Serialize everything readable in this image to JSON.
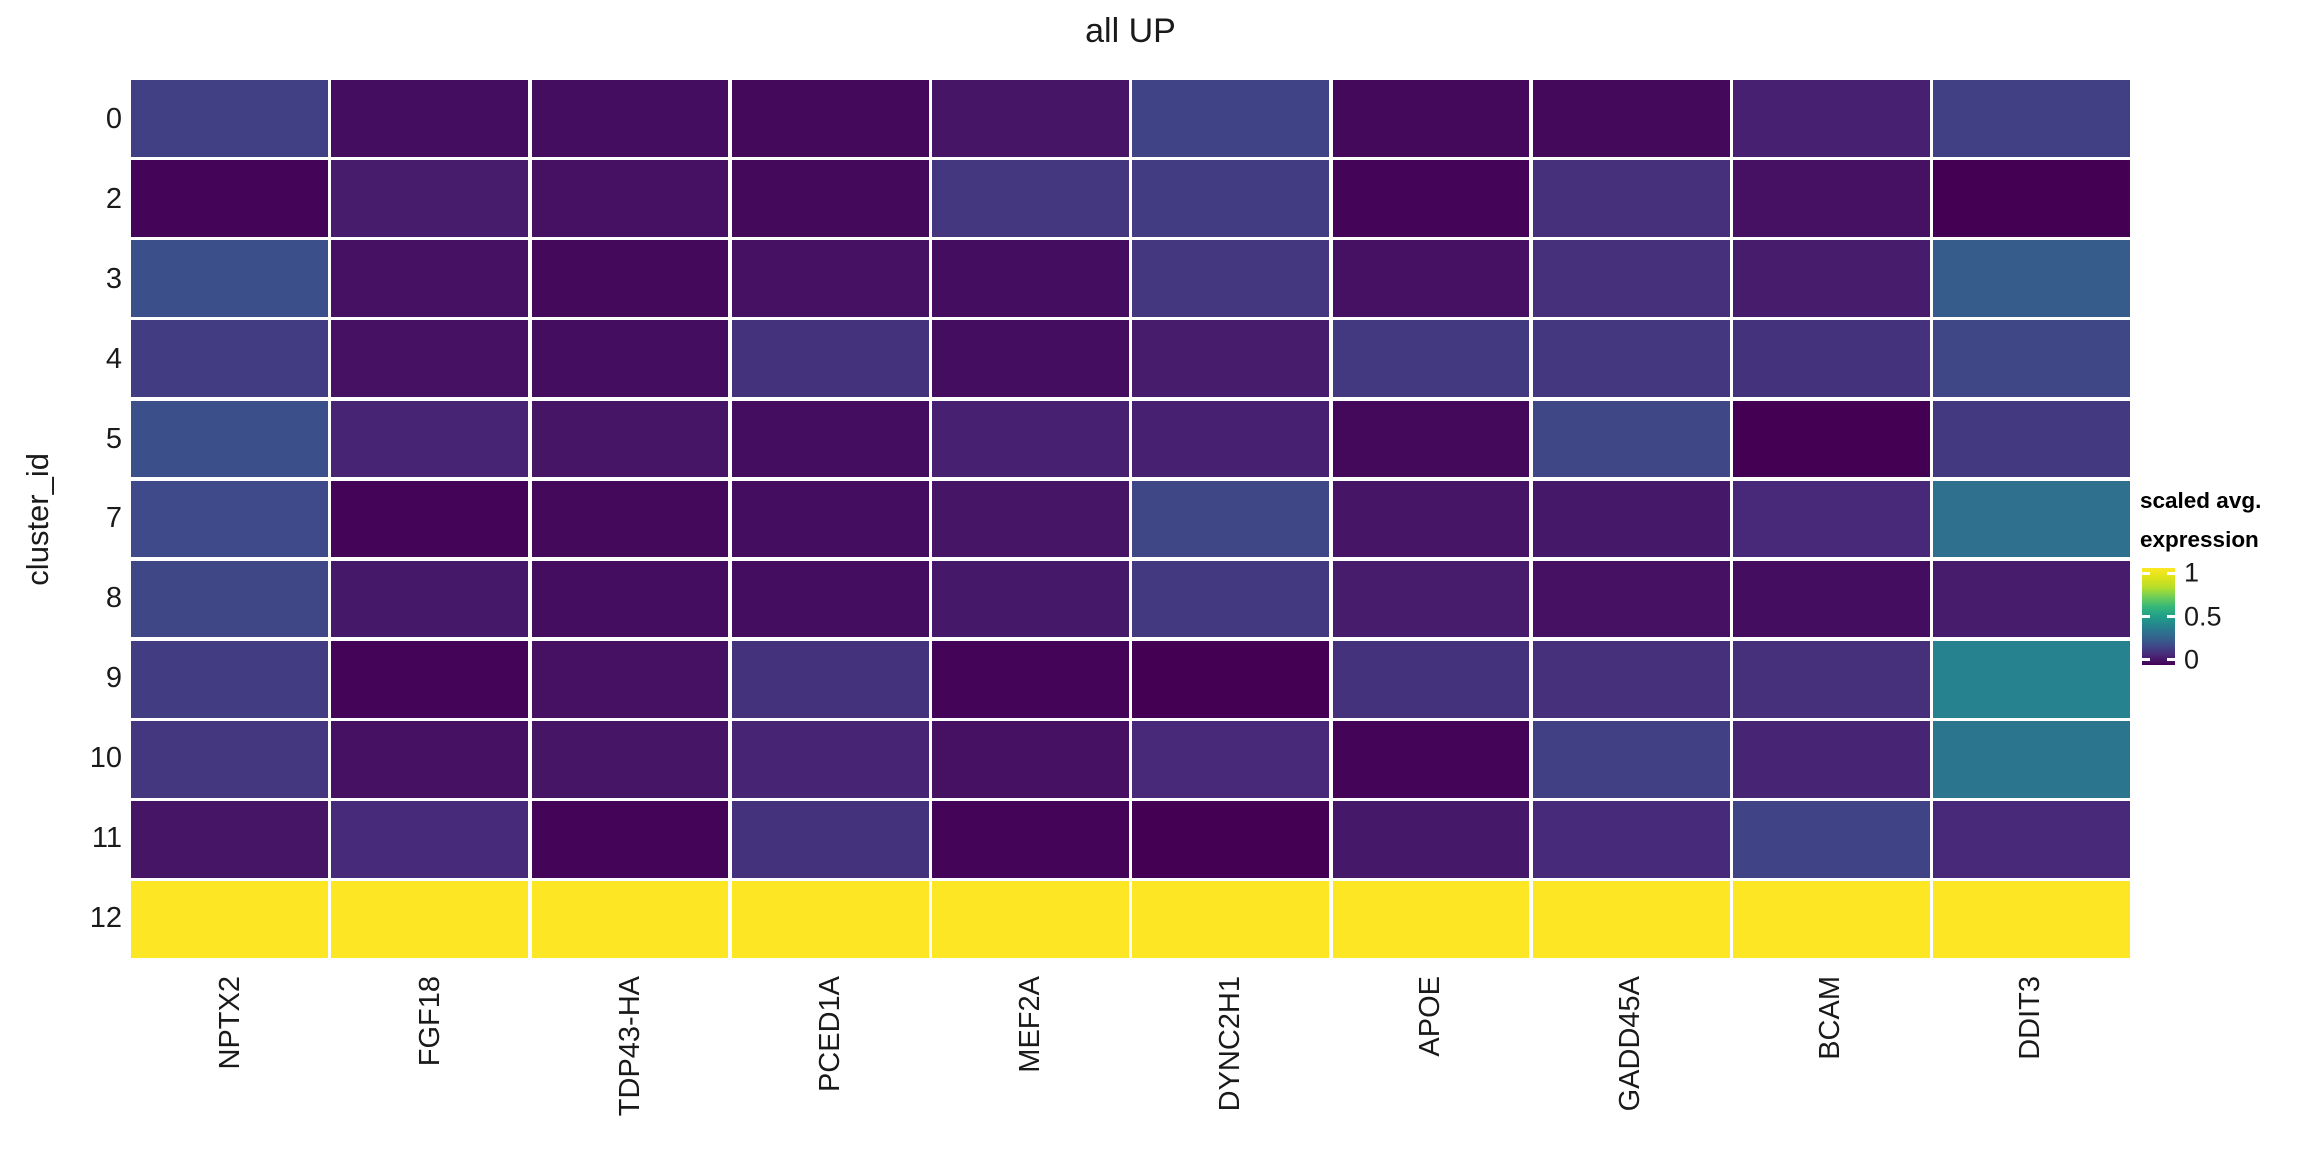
{
  "chart_data": {
    "type": "heatmap",
    "title": "all UP",
    "xlabel": "",
    "ylabel": "cluster_id",
    "x_categories": [
      "NPTX2",
      "FGF18",
      "TDP43-HA",
      "PCED1A",
      "MEF2A",
      "DYNC2H1",
      "APOE",
      "GADD45A",
      "BCAM",
      "DDIT3"
    ],
    "y_categories": [
      "0",
      "2",
      "3",
      "4",
      "5",
      "7",
      "8",
      "9",
      "10",
      "11",
      "12"
    ],
    "values": [
      [
        0.17,
        0.03,
        0.03,
        0.02,
        0.05,
        0.18,
        0.02,
        0.02,
        0.08,
        0.17
      ],
      [
        0.01,
        0.07,
        0.04,
        0.02,
        0.14,
        0.16,
        0.01,
        0.12,
        0.04,
        0.0
      ],
      [
        0.22,
        0.04,
        0.02,
        0.04,
        0.03,
        0.14,
        0.04,
        0.12,
        0.07,
        0.26
      ],
      [
        0.16,
        0.04,
        0.03,
        0.13,
        0.03,
        0.07,
        0.15,
        0.14,
        0.13,
        0.19
      ],
      [
        0.22,
        0.09,
        0.05,
        0.03,
        0.08,
        0.08,
        0.02,
        0.19,
        0.0,
        0.15
      ],
      [
        0.2,
        0.01,
        0.02,
        0.03,
        0.05,
        0.19,
        0.05,
        0.06,
        0.1,
        0.33
      ],
      [
        0.19,
        0.06,
        0.03,
        0.03,
        0.06,
        0.15,
        0.07,
        0.04,
        0.03,
        0.07
      ],
      [
        0.16,
        0.01,
        0.04,
        0.13,
        0.01,
        0.0,
        0.13,
        0.12,
        0.12,
        0.4
      ],
      [
        0.14,
        0.04,
        0.05,
        0.09,
        0.04,
        0.1,
        0.01,
        0.17,
        0.09,
        0.35
      ],
      [
        0.05,
        0.11,
        0.01,
        0.13,
        0.01,
        0.0,
        0.06,
        0.11,
        0.18,
        0.1
      ],
      [
        1.0,
        1.0,
        1.0,
        1.0,
        1.0,
        1.0,
        1.0,
        1.0,
        1.0,
        1.0
      ]
    ],
    "value_range": [
      0,
      1
    ],
    "colormap": "viridis",
    "colormap_stops": [
      "#440154",
      "#482878",
      "#3e4a89",
      "#31688e",
      "#26828e",
      "#1f9e89",
      "#35b779",
      "#6ece58",
      "#b5de2b",
      "#dce319",
      "#fde725"
    ],
    "grid": false,
    "legend": {
      "position": "right",
      "title_line1": "scaled avg.",
      "title_line2": "expression",
      "ticks": [
        {
          "label": "1",
          "value": 1.0
        },
        {
          "label": "0.5",
          "value": 0.5
        },
        {
          "label": "0",
          "value": 0.0
        }
      ]
    }
  }
}
